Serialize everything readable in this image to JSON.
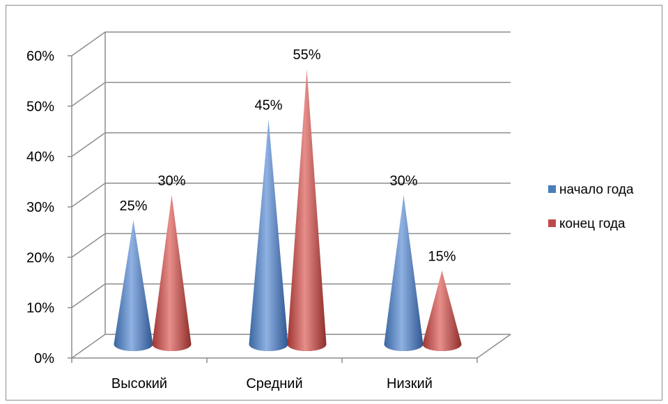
{
  "chart_data": {
    "type": "bar",
    "categories": [
      "Высокий",
      "Средний",
      "Низкий"
    ],
    "series": [
      {
        "name": "начало года",
        "values": [
          0.25,
          0.45,
          0.3
        ],
        "labels": [
          "25%",
          "45%",
          "30%"
        ],
        "color": "#4a7ebb"
      },
      {
        "name": "конец года",
        "values": [
          0.3,
          0.55,
          0.15
        ],
        "labels": [
          "30%",
          "55%",
          "15%"
        ],
        "color": "#be4b48"
      }
    ],
    "yticks": [
      "0%",
      "10%",
      "20%",
      "30%",
      "40%",
      "50%",
      "60%"
    ],
    "ylim": [
      0,
      0.6
    ],
    "grid": true,
    "legend": "right",
    "style": "3d-cone"
  }
}
